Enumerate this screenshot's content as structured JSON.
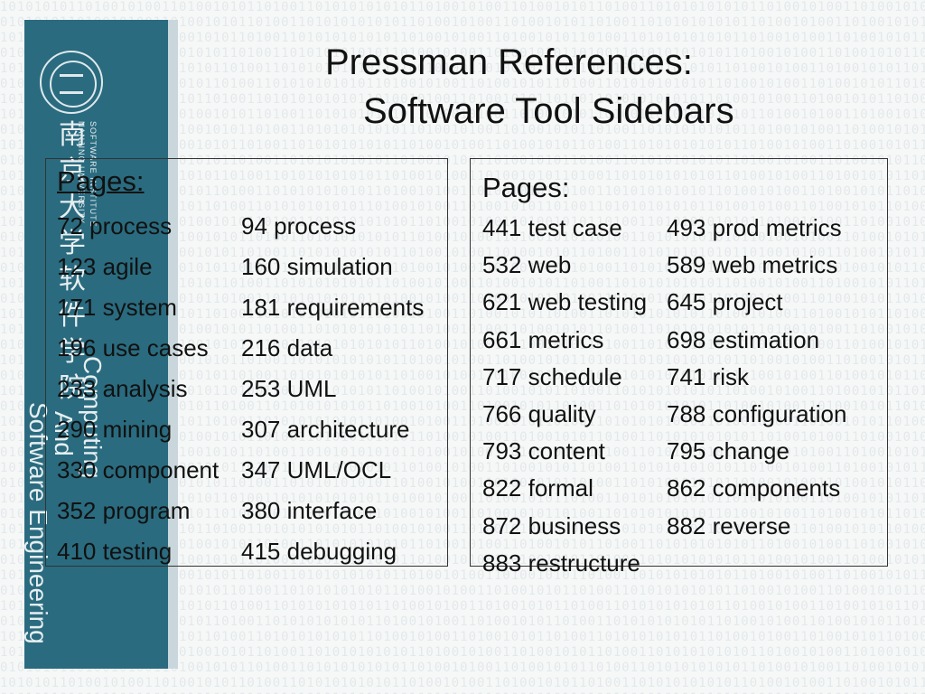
{
  "slide": {
    "title_line1": "Pressman References:",
    "title_line2": "Software Tool Sidebars"
  },
  "banner": {
    "seal_text": "南京大学软件学院",
    "english_line1": "NANJING UNIVERSITY",
    "english_line2": "SOFTWARE INSTITUTE",
    "vertical_text1": "Computing",
    "vertical_text2": "And",
    "vertical_text3": "Software Engineering"
  },
  "left_box": {
    "heading": "Pages:",
    "col1": [
      "72 process",
      "123 agile",
      "171 system",
      "196 use cases",
      "233 analysis",
      "290 mining",
      "330 component",
      "352 program",
      "410 testing"
    ],
    "col2": [
      "94 process",
      "160 simulation",
      "181 requirements",
      "216 data",
      "253 UML",
      "307 architecture",
      "347 UML/OCL",
      "380 interface",
      "415 debugging"
    ]
  },
  "right_box": {
    "heading": "Pages:",
    "col1": [
      "441 test case",
      "532 web",
      "621 web testing",
      "661 metrics",
      "717 schedule",
      "766 quality",
      "793 content",
      "822 formal",
      "872 business",
      "883 restructure"
    ],
    "col2": [
      "493 prod metrics",
      "589 web metrics",
      "645 project",
      "698 estimation",
      "741 risk",
      "788 configuration",
      "795 change",
      "862 components",
      "882 reverse"
    ]
  },
  "colors": {
    "banner": "#2a6b7f",
    "background": "#f6f8f8",
    "text": "#111111"
  }
}
